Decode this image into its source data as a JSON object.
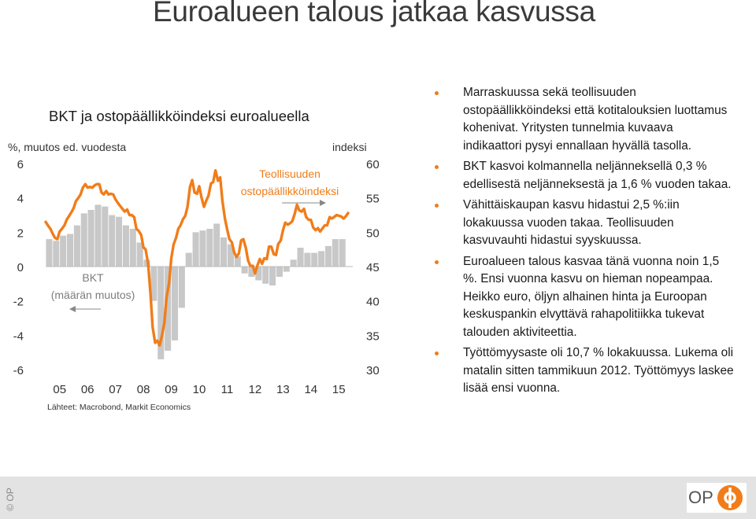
{
  "slide": {
    "title": "Euroalueen talous jatkaa kasvussa",
    "bullets": [
      "Marraskuussa sekä teollisuuden ostopäällikköindeksi että kotitalouksien luottamus kohenivat. Yritysten tunnelmia kuvaava indikaattori pysyi ennallaan hyvällä tasolla.",
      "BKT kasvoi kolmannella neljänneksellä 0,3 % edellisestä neljänneksestä ja 1,6 % vuoden takaa.",
      "Vähittäiskaupan kasvu hidastui 2,5 %:iin lokakuussa vuoden takaa. Teollisuuden kasvuvauhti hidastui syyskuussa.",
      "Euroalueen talous kasvaa tänä vuonna noin 1,5 %. Ensi vuonna kasvu on hieman nopeampaa. Heikko euro, öljyn alhainen hinta ja Euroopan keskuspankin elvyttävä rahapolitiikka tukevat talouden aktiviteettia.",
      "Työttömyysaste oli 10,7 % lokakuussa. Lukema oli matalin sitten tammikuun 2012. Työttömyys laskee lisää ensi vuonna."
    ],
    "copyright": "© OP",
    "logo_text": "OP",
    "accent_color": "#f07d1a"
  },
  "chart_data": {
    "type": "bar",
    "title": "BKT ja ostopäällikköindeksi euroalueella",
    "left_axis_label": "%, muutos ed. vuodesta",
    "right_axis_label": "indeksi",
    "source": "Lähteet: Macrobond, Markit Economics",
    "x_tick_labels": [
      "05",
      "06",
      "07",
      "08",
      "09",
      "10",
      "11",
      "12",
      "13",
      "14",
      "15"
    ],
    "x_range": [
      2005,
      2016
    ],
    "left_ticks": [
      "6",
      "4",
      "2",
      "0",
      "-2",
      "-4",
      "-6"
    ],
    "left_range": [
      -6,
      6
    ],
    "right_ticks": [
      "60",
      "55",
      "50",
      "45",
      "40",
      "35",
      "30"
    ],
    "right_range": [
      30,
      60
    ],
    "annotations": {
      "gdp_label_1": "BKT",
      "gdp_label_2": "(määrän muutos)",
      "pmi_label_1": "Teollisuuden",
      "pmi_label_2": "ostopäällikköindeksi"
    },
    "series": [
      {
        "name": "BKT (määrän muutos)",
        "axis": "left",
        "color": "#c8c8c8",
        "x": [
          2005.0,
          2005.25,
          2005.5,
          2005.75,
          2006.0,
          2006.25,
          2006.5,
          2006.75,
          2007.0,
          2007.25,
          2007.5,
          2007.75,
          2008.0,
          2008.25,
          2008.5,
          2008.75,
          2009.0,
          2009.25,
          2009.5,
          2009.75,
          2010.0,
          2010.25,
          2010.5,
          2010.75,
          2011.0,
          2011.25,
          2011.5,
          2011.75,
          2012.0,
          2012.25,
          2012.5,
          2012.75,
          2013.0,
          2013.25,
          2013.5,
          2013.75,
          2014.0,
          2014.25,
          2014.5,
          2014.75,
          2015.0,
          2015.25,
          2015.5
        ],
        "values": [
          1.6,
          1.5,
          1.8,
          1.9,
          2.4,
          3.1,
          3.3,
          3.6,
          3.5,
          3.0,
          2.9,
          2.4,
          2.2,
          1.4,
          0.4,
          -2.0,
          -5.4,
          -4.9,
          -4.3,
          -2.4,
          0.8,
          2.0,
          2.1,
          2.2,
          2.5,
          1.7,
          1.3,
          0.6,
          -0.4,
          -0.6,
          -0.8,
          -1.0,
          -1.1,
          -0.6,
          -0.3,
          0.4,
          1.1,
          0.8,
          0.8,
          0.9,
          1.2,
          1.6,
          1.6
        ]
      },
      {
        "name": "Teollisuuden ostopäällikköindeksi",
        "axis": "right",
        "color": "#f07d1a",
        "x": [
          2005.0,
          2005.08,
          2005.17,
          2005.25,
          2005.33,
          2005.42,
          2005.5,
          2005.58,
          2005.67,
          2005.75,
          2005.83,
          2005.92,
          2006.0,
          2006.08,
          2006.17,
          2006.25,
          2006.33,
          2006.42,
          2006.5,
          2006.58,
          2006.67,
          2006.75,
          2006.83,
          2006.92,
          2007.0,
          2007.08,
          2007.17,
          2007.25,
          2007.33,
          2007.42,
          2007.5,
          2007.58,
          2007.67,
          2007.75,
          2007.83,
          2007.92,
          2008.0,
          2008.08,
          2008.17,
          2008.25,
          2008.33,
          2008.42,
          2008.5,
          2008.58,
          2008.67,
          2008.75,
          2008.83,
          2008.92,
          2009.0,
          2009.08,
          2009.17,
          2009.25,
          2009.33,
          2009.42,
          2009.5,
          2009.58,
          2009.67,
          2009.75,
          2009.83,
          2009.92,
          2010.0,
          2010.08,
          2010.17,
          2010.25,
          2010.33,
          2010.42,
          2010.5,
          2010.58,
          2010.67,
          2010.75,
          2010.83,
          2010.92,
          2011.0,
          2011.08,
          2011.17,
          2011.25,
          2011.33,
          2011.42,
          2011.5,
          2011.58,
          2011.67,
          2011.75,
          2011.83,
          2011.92,
          2012.0,
          2012.08,
          2012.17,
          2012.25,
          2012.33,
          2012.42,
          2012.5,
          2012.58,
          2012.67,
          2012.75,
          2012.83,
          2012.92,
          2013.0,
          2013.08,
          2013.17,
          2013.25,
          2013.33,
          2013.42,
          2013.5,
          2013.58,
          2013.67,
          2013.75,
          2013.83,
          2013.92,
          2014.0,
          2014.08,
          2014.17,
          2014.25,
          2014.33,
          2014.42,
          2014.5,
          2014.58,
          2014.67,
          2014.75,
          2014.83,
          2014.92,
          2015.0,
          2015.08,
          2015.17,
          2015.25,
          2015.33,
          2015.42,
          2015.5,
          2015.58,
          2015.67,
          2015.75,
          2015.83
        ],
        "values": [
          51.5,
          51.0,
          50.5,
          49.8,
          49.2,
          49.0,
          50.1,
          50.5,
          51.0,
          51.8,
          52.3,
          52.9,
          53.5,
          54.5,
          55.0,
          55.5,
          56.5,
          57.0,
          56.5,
          56.6,
          56.5,
          56.8,
          57.0,
          57.0,
          55.8,
          55.5,
          56.0,
          55.5,
          55.6,
          55.5,
          54.8,
          54.3,
          53.8,
          53.4,
          53.0,
          53.3,
          52.5,
          52.5,
          52.2,
          50.5,
          50.2,
          49.6,
          47.8,
          47.5,
          45.4,
          41.2,
          36.2,
          33.9,
          34.2,
          33.5,
          35.0,
          36.8,
          40.5,
          42.6,
          46.2,
          48.2,
          49.2,
          50.5,
          51.0,
          51.9,
          52.4,
          53.7,
          56.6,
          57.6,
          55.8,
          55.6,
          56.7,
          55.1,
          53.7,
          54.6,
          55.3,
          57.1,
          57.3,
          59.0,
          57.5,
          58.0,
          54.6,
          52.0,
          50.4,
          49.0,
          48.5,
          47.1,
          46.4,
          46.9,
          48.8,
          49.0,
          47.7,
          45.9,
          45.1,
          45.1,
          44.0,
          45.1,
          46.1,
          45.4,
          46.2,
          46.1,
          47.9,
          47.9,
          46.8,
          46.7,
          48.3,
          48.8,
          50.3,
          51.4,
          51.1,
          51.3,
          51.6,
          52.7,
          54.0,
          53.2,
          53.0,
          53.4,
          52.2,
          51.8,
          51.8,
          50.7,
          50.3,
          50.6,
          50.1,
          50.6,
          51.0,
          51.0,
          52.2,
          52.0,
          52.2,
          52.5,
          52.4,
          52.3,
          52.0,
          52.3,
          52.8
        ]
      }
    ]
  }
}
